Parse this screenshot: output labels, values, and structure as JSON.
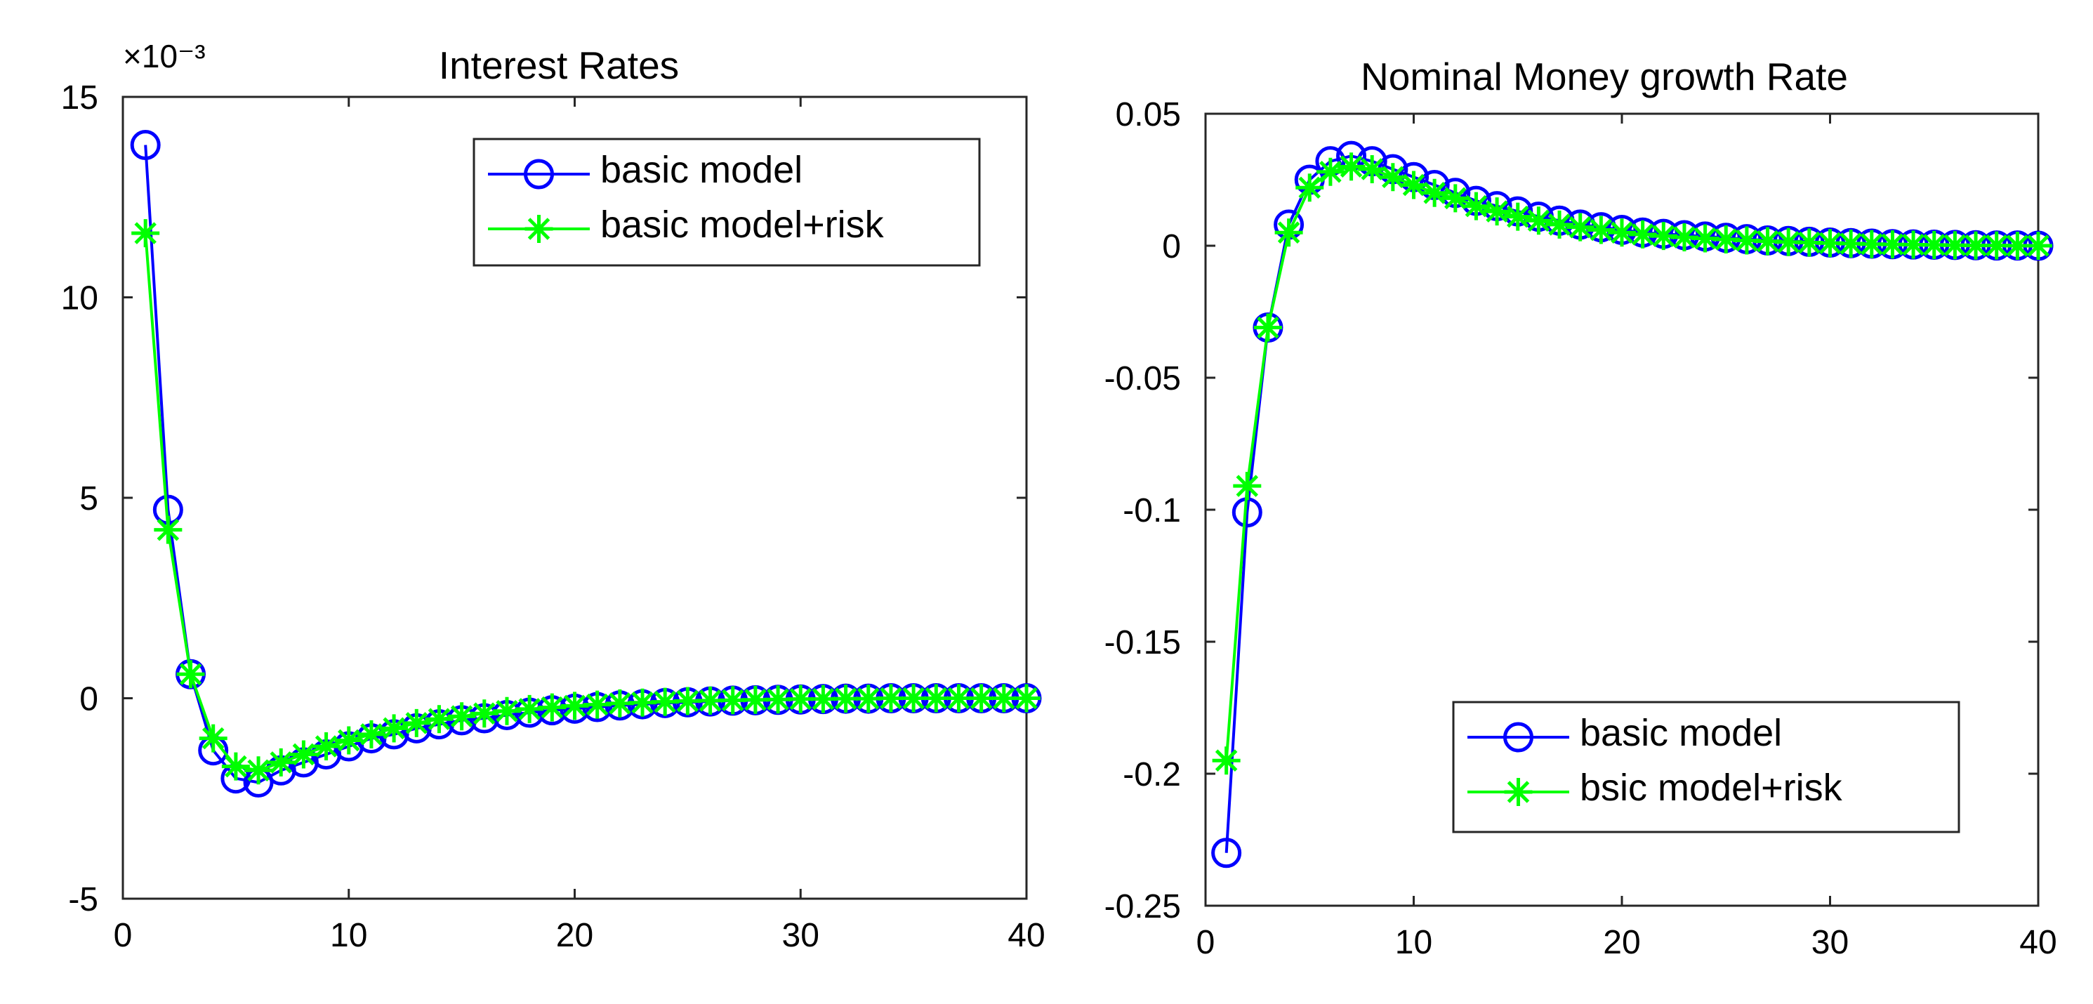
{
  "chart_data": [
    {
      "type": "line",
      "title": "Interest Rates",
      "xlabel": "",
      "ylabel": "",
      "xlim": [
        0,
        40
      ],
      "ylim": [
        -5,
        15
      ],
      "x_ticks": [
        "0",
        "10",
        "20",
        "30",
        "40"
      ],
      "y_ticks": [
        "15",
        "10",
        "5",
        "0",
        "-5"
      ],
      "y_exponent": "×10⁻³",
      "grid": false,
      "legend_position": "top-right",
      "x": [
        1,
        2,
        3,
        4,
        5,
        6,
        7,
        8,
        9,
        10,
        11,
        12,
        13,
        14,
        15,
        16,
        17,
        18,
        19,
        20,
        21,
        22,
        23,
        24,
        25,
        26,
        27,
        28,
        29,
        30,
        31,
        32,
        33,
        34,
        35,
        36,
        37,
        38,
        39,
        40
      ],
      "series": [
        {
          "name": "basic model",
          "color": "#0000ff",
          "marker": "circle",
          "values": [
            13.8,
            4.7,
            0.6,
            -1.3,
            -2.0,
            -2.1,
            -1.8,
            -1.6,
            -1.4,
            -1.2,
            -1.0,
            -0.9,
            -0.75,
            -0.65,
            -0.55,
            -0.5,
            -0.42,
            -0.36,
            -0.3,
            -0.26,
            -0.22,
            -0.18,
            -0.15,
            -0.12,
            -0.1,
            -0.08,
            -0.06,
            -0.05,
            -0.04,
            -0.03,
            -0.02,
            -0.01,
            -0.01,
            0,
            0,
            0,
            0,
            0,
            0,
            0
          ]
        },
        {
          "name": "basic model+risk",
          "color": "#00ff00",
          "marker": "star",
          "values": [
            11.6,
            4.2,
            0.6,
            -1.0,
            -1.7,
            -1.8,
            -1.6,
            -1.4,
            -1.2,
            -1.05,
            -0.9,
            -0.75,
            -0.62,
            -0.52,
            -0.45,
            -0.38,
            -0.32,
            -0.27,
            -0.23,
            -0.19,
            -0.16,
            -0.13,
            -0.11,
            -0.09,
            -0.07,
            -0.06,
            -0.05,
            -0.04,
            -0.03,
            -0.02,
            -0.02,
            -0.01,
            -0.01,
            0,
            0,
            0,
            0,
            0,
            0,
            0
          ]
        }
      ]
    },
    {
      "type": "line",
      "title": "Nominal Money growth Rate",
      "xlabel": "",
      "ylabel": "",
      "xlim": [
        0,
        40
      ],
      "ylim": [
        -0.25,
        0.05
      ],
      "x_ticks": [
        "0",
        "10",
        "20",
        "30",
        "40"
      ],
      "y_ticks": [
        "0.05",
        "0",
        "-0.05",
        "-0.1",
        "-0.15",
        "-0.2",
        "-0.25"
      ],
      "grid": false,
      "legend_position": "bottom-right",
      "x": [
        1,
        2,
        3,
        4,
        5,
        6,
        7,
        8,
        9,
        10,
        11,
        12,
        13,
        14,
        15,
        16,
        17,
        18,
        19,
        20,
        21,
        22,
        23,
        24,
        25,
        26,
        27,
        28,
        29,
        30,
        31,
        32,
        33,
        34,
        35,
        36,
        37,
        38,
        39,
        40
      ],
      "series": [
        {
          "name": "basic model",
          "color": "#0000ff",
          "marker": "circle",
          "values": [
            -0.23,
            -0.101,
            -0.031,
            0.008,
            0.025,
            0.032,
            0.034,
            0.032,
            0.029,
            0.026,
            0.023,
            0.02,
            0.017,
            0.015,
            0.013,
            0.011,
            0.0095,
            0.008,
            0.007,
            0.006,
            0.005,
            0.0045,
            0.004,
            0.0035,
            0.003,
            0.0025,
            0.002,
            0.0018,
            0.0015,
            0.0012,
            0.001,
            0.0008,
            0.0006,
            0.0005,
            0.0004,
            0.0003,
            0.0002,
            0.0001,
            0.0001,
            0
          ]
        },
        {
          "name": "bsic model+risk",
          "color": "#00ff00",
          "marker": "star",
          "values": [
            -0.195,
            -0.091,
            -0.031,
            0.005,
            0.022,
            0.028,
            0.03,
            0.029,
            0.026,
            0.023,
            0.02,
            0.018,
            0.015,
            0.013,
            0.011,
            0.0095,
            0.008,
            0.007,
            0.006,
            0.005,
            0.0043,
            0.0037,
            0.0032,
            0.0028,
            0.0024,
            0.002,
            0.0017,
            0.0014,
            0.0012,
            0.001,
            0.0008,
            0.0006,
            0.0005,
            0.0004,
            0.0003,
            0.0002,
            0.0001,
            0.0001,
            0,
            0
          ]
        }
      ]
    }
  ]
}
